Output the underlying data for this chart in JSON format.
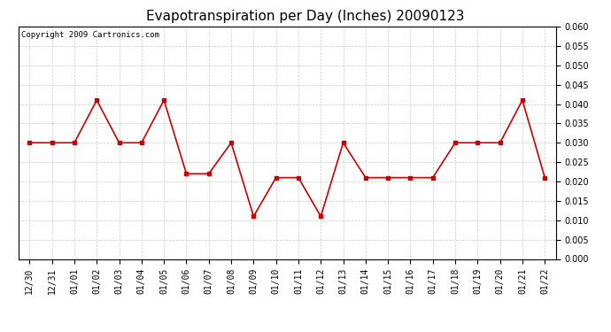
{
  "title": "Evapotranspiration per Day (Inches) 20090123",
  "copyright_text": "Copyright 2009 Cartronics.com",
  "x_labels": [
    "12/30",
    "12/31",
    "01/01",
    "01/02",
    "01/03",
    "01/04",
    "01/05",
    "01/06",
    "01/07",
    "01/08",
    "01/09",
    "01/10",
    "01/11",
    "01/12",
    "01/13",
    "01/14",
    "01/15",
    "01/16",
    "01/17",
    "01/18",
    "01/19",
    "01/20",
    "01/21",
    "01/22"
  ],
  "y_values": [
    0.03,
    0.03,
    0.03,
    0.041,
    0.03,
    0.03,
    0.041,
    0.022,
    0.022,
    0.03,
    0.011,
    0.021,
    0.021,
    0.011,
    0.03,
    0.021,
    0.021,
    0.021,
    0.021,
    0.03,
    0.03,
    0.03,
    0.041,
    0.021
  ],
  "ylim": [
    0.0,
    0.06
  ],
  "yticks": [
    0.0,
    0.005,
    0.01,
    0.015,
    0.02,
    0.025,
    0.03,
    0.035,
    0.04,
    0.045,
    0.05,
    0.055,
    0.06
  ],
  "line_color": "#cc0000",
  "marker": "s",
  "marker_size": 3,
  "line_width": 1.2,
  "background_color": "#ffffff",
  "grid_color": "#cccccc",
  "title_fontsize": 11,
  "copyright_fontsize": 6.5,
  "tick_fontsize": 7
}
